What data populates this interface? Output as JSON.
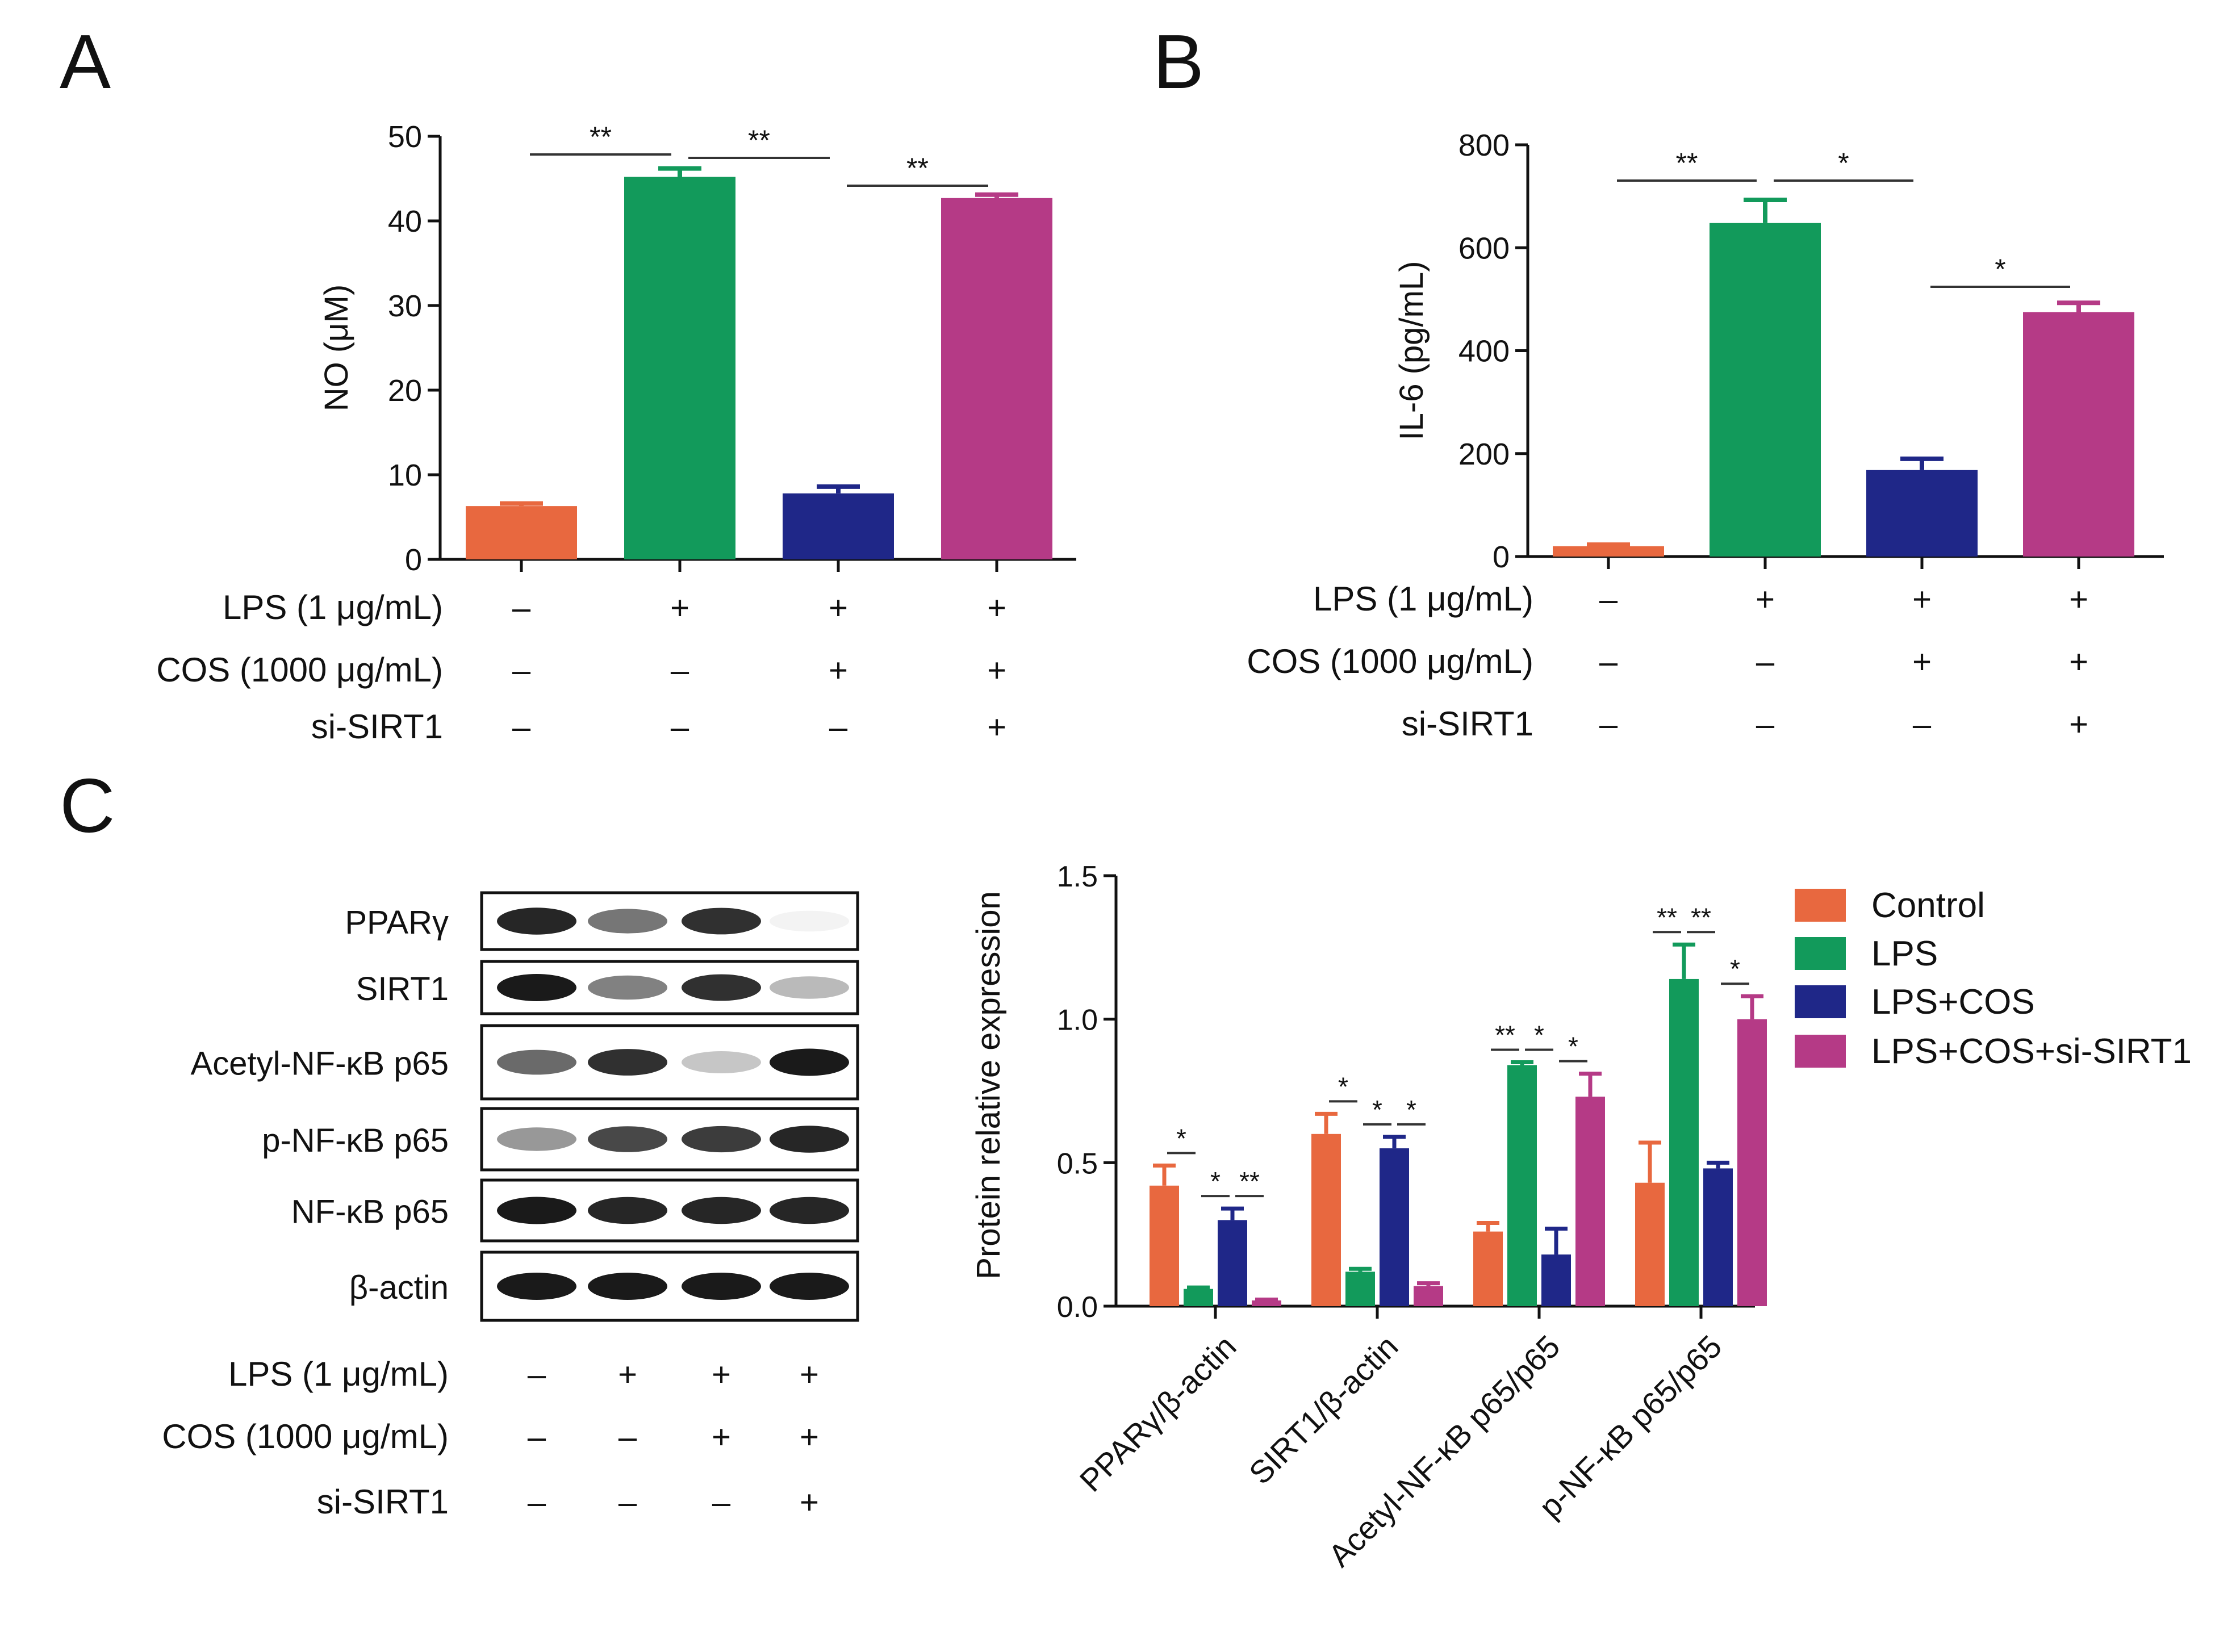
{
  "panels": {
    "A": {
      "letter": "A"
    },
    "B": {
      "letter": "B"
    },
    "C": {
      "letter": "C"
    }
  },
  "colors": {
    "control": "#E8683F",
    "lps": "#129A5B",
    "lps_cos": "#1F2788",
    "lps_cos_si": "#B53A86",
    "axis": "#111111"
  },
  "treatment_labels": {
    "lps": "LPS (1 μg/mL)",
    "cos": "COS (1000 μg/mL)",
    "si": "si-SIRT1"
  },
  "treatment_signs": {
    "lps": [
      "–",
      "+",
      "+",
      "+"
    ],
    "cos": [
      "–",
      "–",
      "+",
      "+"
    ],
    "si": [
      "–",
      "–",
      "–",
      "+"
    ]
  },
  "western_blot": {
    "bands": [
      "PPARγ",
      "SIRT1",
      "Acetyl-NF-κB p65",
      "p-NF-κB p65",
      "NF-κB p65",
      "β-actin"
    ],
    "intensity": [
      [
        0.95,
        0.6,
        0.9,
        0.05
      ],
      [
        1.0,
        0.55,
        0.9,
        0.3
      ],
      [
        0.65,
        0.9,
        0.25,
        1.0
      ],
      [
        0.45,
        0.8,
        0.85,
        0.95
      ],
      [
        1.0,
        0.95,
        0.95,
        0.95
      ],
      [
        1.0,
        1.0,
        1.0,
        1.0
      ]
    ]
  },
  "chart_data": [
    {
      "panel": "A",
      "type": "bar",
      "title": "",
      "xlabel": "",
      "ylabel": "NO (μM)",
      "ylim": [
        0,
        50
      ],
      "yticks": [
        0,
        10,
        20,
        30,
        40,
        50
      ],
      "categories": [
        "Control",
        "LPS",
        "LPS+COS",
        "LPS+COS+si-SIRT1"
      ],
      "values": [
        6.3,
        45.2,
        7.8,
        42.7
      ],
      "errors": [
        0.3,
        1.0,
        0.8,
        0.4
      ],
      "significance": [
        {
          "from": 0,
          "to": 1,
          "label": "**"
        },
        {
          "from": 1,
          "to": 2,
          "label": "**"
        },
        {
          "from": 2,
          "to": 3,
          "label": "**"
        }
      ]
    },
    {
      "panel": "B",
      "type": "bar",
      "title": "",
      "xlabel": "",
      "ylabel": "IL-6 (pg/mL)",
      "ylim": [
        0,
        800
      ],
      "yticks": [
        0,
        200,
        400,
        600,
        800
      ],
      "categories": [
        "Control",
        "LPS",
        "LPS+COS",
        "LPS+COS+si-SIRT1"
      ],
      "values": [
        20,
        648,
        168,
        475
      ],
      "errors": [
        3,
        45,
        22,
        18
      ],
      "significance": [
        {
          "from": 0,
          "to": 1,
          "label": "**"
        },
        {
          "from": 1,
          "to": 2,
          "label": "*"
        },
        {
          "from": 2,
          "to": 3,
          "label": "*"
        }
      ]
    },
    {
      "panel": "C",
      "type": "bar",
      "title": "",
      "xlabel": "",
      "ylabel": "Protein relative expression",
      "ylim": [
        0,
        1.5
      ],
      "yticks": [
        "0.0",
        "0.5",
        "1.0",
        "1.5"
      ],
      "categories": [
        "PPARγ/β-actin",
        "SIRT1/β-actin",
        "Acetyl-NF-κB p65/p65",
        "p-NF-κB p65/p65"
      ],
      "legend": [
        "Control",
        "LPS",
        "LPS+COS",
        "LPS+COS+si-SIRT1"
      ],
      "legend_position": "right",
      "series": [
        {
          "name": "Control",
          "values": [
            0.42,
            0.6,
            0.26,
            0.43
          ],
          "errors": [
            0.07,
            0.07,
            0.03,
            0.14
          ]
        },
        {
          "name": "LPS",
          "values": [
            0.06,
            0.12,
            0.84,
            1.14
          ],
          "errors": [
            0.005,
            0.01,
            0.01,
            0.12
          ]
        },
        {
          "name": "LPS+COS",
          "values": [
            0.3,
            0.55,
            0.18,
            0.48
          ],
          "errors": [
            0.04,
            0.04,
            0.09,
            0.02
          ]
        },
        {
          "name": "LPS+COS+si-SIRT1",
          "values": [
            0.02,
            0.07,
            0.73,
            1.0
          ],
          "errors": [
            0.003,
            0.01,
            0.08,
            0.08
          ]
        }
      ],
      "significance": [
        {
          "category": 0,
          "from": 0,
          "to": 1,
          "label": "*"
        },
        {
          "category": 0,
          "from": 1,
          "to": 2,
          "label": "*"
        },
        {
          "category": 0,
          "from": 2,
          "to": 3,
          "label": "**"
        },
        {
          "category": 1,
          "from": 0,
          "to": 1,
          "label": "*"
        },
        {
          "category": 1,
          "from": 1,
          "to": 2,
          "label": "*"
        },
        {
          "category": 1,
          "from": 2,
          "to": 3,
          "label": "*"
        },
        {
          "category": 2,
          "from": 0,
          "to": 1,
          "label": "**"
        },
        {
          "category": 2,
          "from": 1,
          "to": 2,
          "label": "*"
        },
        {
          "category": 2,
          "from": 2,
          "to": 3,
          "label": "*"
        },
        {
          "category": 3,
          "from": 0,
          "to": 1,
          "label": "**"
        },
        {
          "category": 3,
          "from": 1,
          "to": 2,
          "label": "**"
        },
        {
          "category": 3,
          "from": 2,
          "to": 3,
          "label": "*"
        }
      ]
    }
  ]
}
